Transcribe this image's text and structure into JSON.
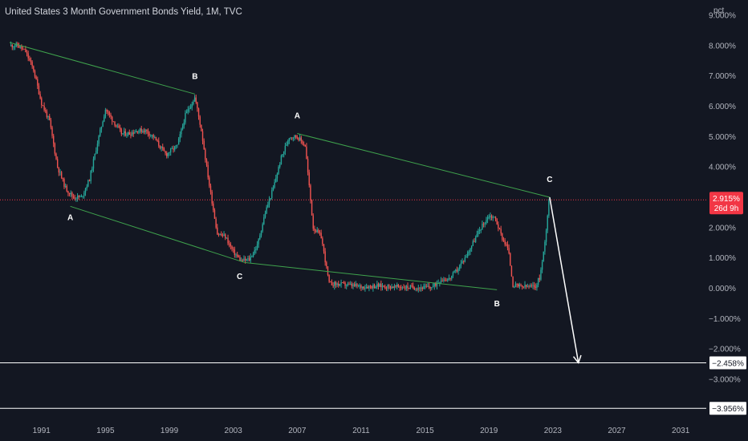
{
  "chart_title": "United States 3 Month Government Bonds Yield, 1M, TVC",
  "unit_label": "pct",
  "colors": {
    "background": "#131722",
    "up": "#26a69a",
    "down": "#ef5350",
    "pattern_line": "#3fa34d",
    "price_line": "#f23645",
    "projection": "#ffffff"
  },
  "chart_data": {
    "type": "line",
    "title": "United States 3 Month Government Bonds Yield, 1M, TVC",
    "ylabel": "pct",
    "xlim": [
      1988.4,
      2032.6
    ],
    "ylim": [
      -4.4,
      9.5
    ],
    "grid": false,
    "x_ticks": [
      1991,
      1995,
      1999,
      2003,
      2007,
      2011,
      2015,
      2019,
      2023,
      2027,
      2031
    ],
    "x_tick_labels": [
      "1991",
      "1995",
      "1999",
      "2003",
      "2007",
      "2011",
      "2015",
      "2019",
      "2023",
      "2027",
      "2031"
    ],
    "y_ticks": [
      9,
      8,
      7,
      6,
      5,
      4,
      2,
      1,
      0,
      -1,
      -2,
      -3
    ],
    "y_tick_labels": [
      "9.000%",
      "8.000%",
      "7.000%",
      "6.000%",
      "5.000%",
      "4.000%",
      "2.000%",
      "1.000%",
      "0.000%",
      "−1.000%",
      "−2.000%",
      "−3.000%"
    ],
    "series": [
      {
        "style": "monthly candles",
        "x": [
          1989.0,
          1989.5,
          1990.0,
          1990.5,
          1991.0,
          1991.5,
          1992.0,
          1992.5,
          1993.0,
          1993.5,
          1994.0,
          1994.5,
          1995.0,
          1995.5,
          1996.0,
          1996.5,
          1997.0,
          1997.5,
          1998.0,
          1998.5,
          1998.8,
          1999.0,
          1999.5,
          2000.0,
          2000.6,
          2001.0,
          2001.5,
          2002.0,
          2002.5,
          2003.0,
          2003.5,
          2004.0,
          2004.5,
          2005.0,
          2005.5,
          2006.0,
          2006.5,
          2007.0,
          2007.5,
          2008.0,
          2008.5,
          2009.0,
          2010.0,
          2011.0,
          2012.0,
          2013.0,
          2014.0,
          2015.0,
          2015.5,
          2016.0,
          2016.5,
          2017.0,
          2017.5,
          2018.0,
          2018.5,
          2019.0,
          2019.4,
          2019.8,
          2020.2,
          2020.5,
          2021.0,
          2021.5,
          2021.9,
          2022.2,
          2022.5,
          2022.75
        ],
        "values": [
          8.0,
          8.0,
          7.8,
          7.2,
          6.1,
          5.5,
          4.0,
          3.3,
          3.0,
          3.0,
          3.6,
          4.8,
          5.9,
          5.5,
          5.1,
          5.1,
          5.2,
          5.2,
          5.0,
          4.6,
          4.4,
          4.5,
          4.7,
          5.7,
          6.3,
          5.2,
          3.4,
          1.8,
          1.7,
          1.2,
          0.9,
          0.95,
          1.4,
          2.5,
          3.3,
          4.3,
          5.0,
          5.0,
          4.7,
          2.0,
          1.7,
          0.15,
          0.12,
          0.05,
          0.08,
          0.05,
          0.03,
          0.02,
          0.05,
          0.3,
          0.3,
          0.6,
          1.0,
          1.5,
          2.0,
          2.4,
          2.3,
          1.7,
          1.3,
          0.1,
          0.05,
          0.05,
          0.05,
          0.4,
          1.5,
          2.915
        ]
      },
      {
        "style": "pattern line",
        "x": [
          1989.0,
          2000.6
        ],
        "values": [
          8.1,
          6.4
        ]
      },
      {
        "style": "pattern line",
        "x": [
          1992.8,
          2003.7
        ],
        "values": [
          2.7,
          0.85
        ]
      },
      {
        "style": "pattern line",
        "x": [
          2007.0,
          2022.8
        ],
        "values": [
          5.1,
          3.0
        ]
      },
      {
        "style": "pattern line",
        "x": [
          2003.7,
          2019.5
        ],
        "values": [
          0.85,
          -0.05
        ]
      },
      {
        "style": "projection arrow",
        "x": [
          2022.8,
          2024.6
        ],
        "values": [
          3.0,
          -2.458
        ]
      }
    ],
    "wave_labels": [
      {
        "text": "A",
        "x": 1992.8,
        "y": 2.25
      },
      {
        "text": "B",
        "x": 2000.6,
        "y": 6.9
      },
      {
        "text": "C",
        "x": 2003.4,
        "y": 0.3
      },
      {
        "text": "A",
        "x": 2007.0,
        "y": 5.6
      },
      {
        "text": "B",
        "x": 2019.5,
        "y": -0.6
      },
      {
        "text": "C",
        "x": 2022.8,
        "y": 3.5
      }
    ],
    "current_value": 2.915,
    "current_value_label": "2.915%",
    "countdown_label": "26d 9h",
    "horizontal_levels": [
      {
        "value": -2.458,
        "label": "−2.458%"
      },
      {
        "value": -3.956,
        "label": "−3.956%"
      }
    ]
  }
}
